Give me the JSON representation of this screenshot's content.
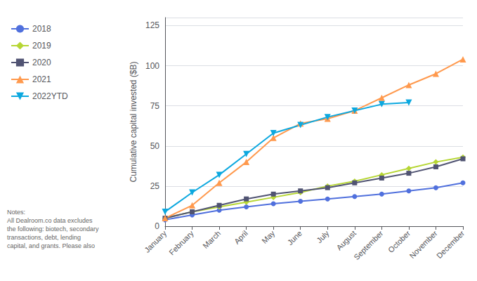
{
  "chart_data": {
    "type": "line",
    "categories": [
      "January",
      "February",
      "March",
      "April",
      "May",
      "June",
      "July",
      "August",
      "September",
      "October",
      "November",
      "December"
    ],
    "series": [
      {
        "name": "2018",
        "marker": "circle",
        "values": [
          4,
          7,
          10,
          12,
          14,
          15.5,
          17,
          18.5,
          20,
          22,
          24,
          27
        ]
      },
      {
        "name": "2019",
        "marker": "diamond",
        "values": [
          5,
          9,
          12,
          15,
          18,
          21,
          25,
          28,
          32,
          36,
          40,
          43
        ]
      },
      {
        "name": "2020",
        "marker": "square",
        "values": [
          5,
          9,
          13,
          17,
          20,
          22,
          24,
          27,
          30,
          33,
          37,
          42
        ]
      },
      {
        "name": "2021",
        "marker": "triangle-up",
        "values": [
          5,
          13,
          27,
          40,
          55,
          64,
          67,
          72,
          80,
          88,
          95,
          104
        ]
      },
      {
        "name": "2022YTD",
        "marker": "triangle-down",
        "values": [
          9,
          21,
          32,
          45,
          58,
          63,
          68,
          72,
          76,
          77,
          null,
          null
        ]
      }
    ],
    "ylabel": "Cumulative capital invested ($B)",
    "ylim": [
      0,
      130
    ],
    "yticks": [
      0,
      25,
      50,
      75,
      100,
      125
    ],
    "grid": true,
    "legend": "left",
    "annotation": "Notes:\nAll Dealroom.co data excludes\nthe following: biotech, secondary\ntransactions, debt, lending\ncapital, and grants. Please also"
  }
}
